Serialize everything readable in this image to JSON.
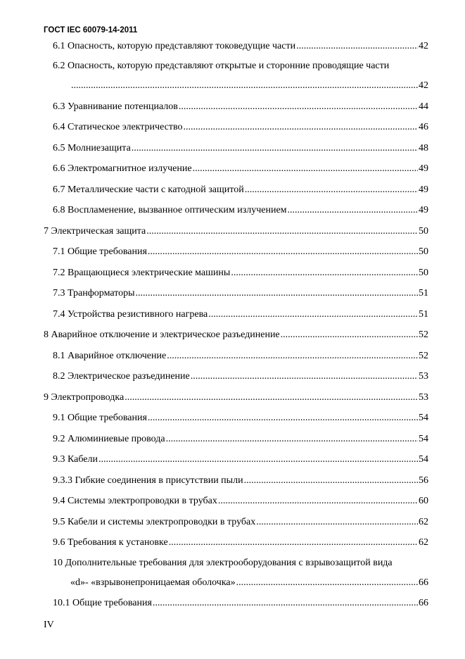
{
  "header": {
    "title": "ГОСТ IEC 60079-14-2011"
  },
  "toc": {
    "entries": [
      {
        "label": "6.1 Опасность, которую представляют токоведущие части",
        "page": 42,
        "indent": 1
      },
      {
        "label": "6.2 Опасность, которую представляют открытые и сторонние проводящие части",
        "page": 42,
        "indent": 1,
        "wrap": true
      },
      {
        "label": "6.3 Уравнивание потенциалов",
        "page": 44,
        "indent": 1
      },
      {
        "label": "6.4 Статическое электричество",
        "page": 46,
        "indent": 1
      },
      {
        "label": "6.5 Молниезащита",
        "page": 48,
        "indent": 1
      },
      {
        "label": "6.6 Электромагнитное излучение",
        "page": 49,
        "indent": 1
      },
      {
        "label": "6.7 Металлические части с катодной защитой",
        "page": 49,
        "indent": 1
      },
      {
        "label": "6.8 Воспламенение, вызванное оптическим излучением",
        "page": 49,
        "indent": 1
      },
      {
        "label": "7 Электрическая защита",
        "page": 50,
        "indent": 0
      },
      {
        "label": "7.1 Общие требования",
        "page": 50,
        "indent": 1
      },
      {
        "label": "7.2 Вращающиеся электрические машины",
        "page": 50,
        "indent": 1
      },
      {
        "label": "7.3 Транформаторы",
        "page": 51,
        "indent": 1
      },
      {
        "label": "7.4 Устройства резистивного нагрева",
        "page": 51,
        "indent": 1
      },
      {
        "label": "8 Аварийное отключение и электрическое разъединение",
        "page": 52,
        "indent": 0
      },
      {
        "label": "8.1 Аварийное отключение",
        "page": 52,
        "indent": 1
      },
      {
        "label": "8.2 Электрическое разъединение",
        "page": 53,
        "indent": 1
      },
      {
        "label": "9 Электропроводка",
        "page": 53,
        "indent": 0
      },
      {
        "label": "9.1 Общие требования",
        "page": 54,
        "indent": 1
      },
      {
        "label": "9.2 Алюминиевые провода",
        "page": 54,
        "indent": 1
      },
      {
        "label": "9.3 Кабели",
        "page": 54,
        "indent": 1
      },
      {
        "label": "9.3.3 Гибкие соединения в присутствии пыли",
        "page": 56,
        "indent": 1
      },
      {
        "label": "9.4 Системы электропроводки в трубах",
        "page": 60,
        "indent": 1
      },
      {
        "label": "9.5 Кабели и системы электропроводки в трубах",
        "page": 62,
        "indent": 1
      },
      {
        "label": "9.6 Требования к установке",
        "page": 62,
        "indent": 1
      },
      {
        "label": "10 Дополнительные требования для электрооборудования с взрывозащитой вида",
        "label_cont": "«d»- «взрывонепроницаемая оболочка»",
        "page": 66,
        "indent": 1,
        "wrap": true
      },
      {
        "label": "10.1 Общие требования",
        "page": 66,
        "indent": 1
      }
    ]
  },
  "footer": {
    "page": "IV"
  }
}
